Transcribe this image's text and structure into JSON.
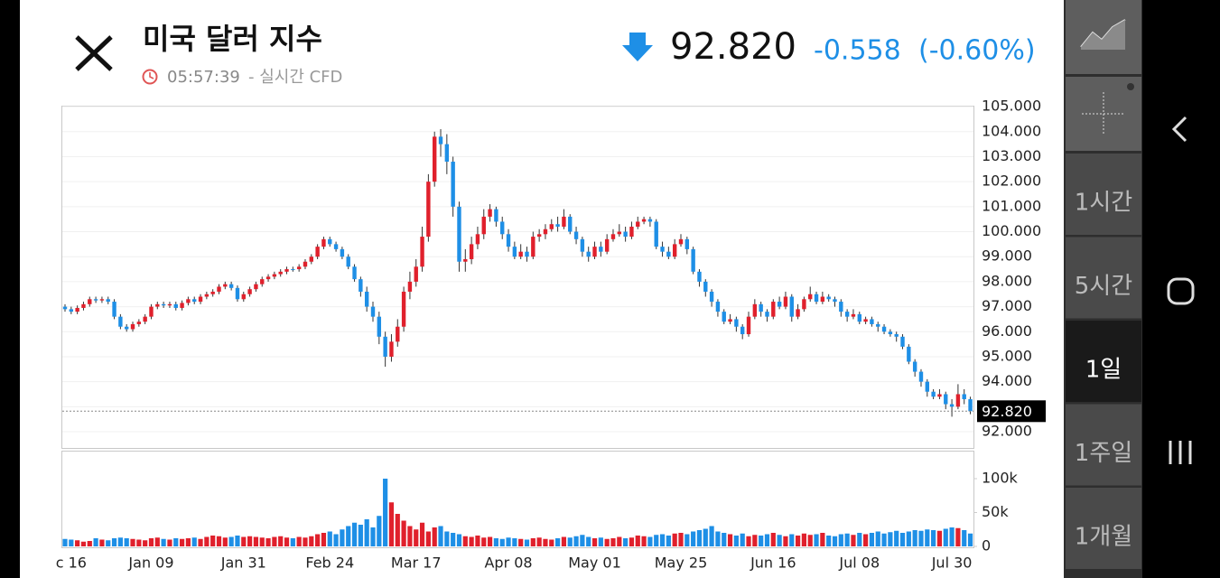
{
  "header": {
    "title": "미국 달러 지수",
    "time": "05:57:39",
    "source": "- 실시간 CFD",
    "price": "92.820",
    "change": "-0.558",
    "change_pct": "(-0.60%)"
  },
  "sidebar": {
    "timeframes": [
      "1시간",
      "5시간",
      "1일",
      "1주일",
      "1개월"
    ],
    "selected": 2
  },
  "chart_data": {
    "type": "candlestick",
    "up_color": "#e0202c",
    "down_color": "#1e8fe6",
    "categories": [
      null,
      "c 16",
      null,
      null,
      null,
      null,
      null,
      null,
      null,
      null,
      null,
      null,
      null,
      null,
      "Jan 09",
      null,
      null,
      null,
      null,
      null,
      null,
      null,
      null,
      null,
      null,
      null,
      null,
      null,
      null,
      "Jan 31",
      null,
      null,
      null,
      null,
      null,
      null,
      null,
      null,
      null,
      null,
      null,
      null,
      null,
      "Feb 24",
      null,
      null,
      null,
      null,
      null,
      null,
      null,
      null,
      null,
      null,
      null,
      null,
      null,
      "Mar 17",
      null,
      null,
      null,
      null,
      null,
      null,
      null,
      null,
      null,
      null,
      null,
      null,
      null,
      null,
      "Apr 08",
      null,
      null,
      null,
      null,
      null,
      null,
      null,
      null,
      null,
      null,
      null,
      null,
      null,
      "May 01",
      null,
      null,
      null,
      null,
      null,
      null,
      null,
      null,
      null,
      null,
      null,
      null,
      null,
      "May 25",
      null,
      null,
      null,
      null,
      null,
      null,
      null,
      null,
      null,
      null,
      null,
      null,
      null,
      null,
      "Jun 16",
      null,
      null,
      null,
      null,
      null,
      null,
      null,
      null,
      null,
      null,
      null,
      null,
      null,
      "Jul 08",
      null,
      null,
      null,
      null,
      null,
      null,
      null,
      null,
      null,
      null,
      null,
      null,
      null,
      null,
      "Jul 30",
      null,
      null,
      null
    ],
    "open": [
      97.0,
      96.9,
      96.8,
      96.95,
      97.1,
      97.3,
      97.25,
      97.3,
      97.2,
      96.6,
      96.2,
      96.1,
      96.3,
      96.4,
      96.6,
      97.0,
      97.1,
      97.05,
      97.1,
      96.95,
      97.15,
      97.3,
      97.2,
      97.4,
      97.5,
      97.6,
      97.8,
      97.9,
      97.75,
      97.3,
      97.5,
      97.7,
      97.9,
      98.1,
      98.2,
      98.3,
      98.4,
      98.5,
      98.5,
      98.6,
      98.8,
      99.0,
      99.4,
      99.7,
      99.5,
      99.3,
      99.0,
      98.6,
      98.1,
      97.6,
      97.0,
      96.6,
      95.8,
      95.0,
      95.6,
      96.2,
      97.6,
      98.0,
      98.6,
      99.8,
      102.0,
      103.8,
      103.5,
      102.8,
      101.0,
      98.8,
      98.9,
      99.5,
      99.9,
      100.6,
      100.9,
      100.4,
      99.9,
      99.4,
      99.0,
      99.2,
      99.0,
      99.8,
      99.9,
      100.1,
      100.3,
      100.2,
      100.6,
      100.0,
      99.7,
      99.2,
      99.0,
      99.4,
      99.2,
      99.7,
      99.9,
      100.0,
      99.8,
      100.2,
      100.4,
      100.5,
      100.4,
      99.4,
      99.2,
      99.0,
      99.5,
      99.7,
      99.3,
      98.4,
      98.0,
      97.6,
      97.2,
      96.8,
      96.4,
      96.5,
      96.2,
      95.9,
      96.6,
      97.1,
      96.8,
      96.6,
      97.2,
      97.0,
      97.4,
      96.6,
      96.9,
      97.3,
      97.5,
      97.2,
      97.4,
      97.3,
      97.2,
      96.8,
      96.6,
      96.7,
      96.4,
      96.5,
      96.3,
      96.2,
      96.0,
      95.9,
      95.8,
      95.4,
      94.8,
      94.4,
      94.0,
      93.6,
      93.4,
      93.5,
      93.1,
      93.0,
      93.5,
      93.3
    ],
    "high": [
      97.1,
      97.0,
      97.05,
      97.2,
      97.4,
      97.4,
      97.4,
      97.4,
      97.3,
      96.7,
      96.3,
      96.4,
      96.5,
      96.7,
      97.1,
      97.2,
      97.2,
      97.2,
      97.2,
      97.25,
      97.4,
      97.4,
      97.5,
      97.6,
      97.7,
      97.9,
      98.0,
      98.0,
      97.85,
      97.6,
      97.8,
      98.0,
      98.2,
      98.3,
      98.4,
      98.5,
      98.6,
      98.6,
      98.7,
      98.9,
      99.1,
      99.5,
      99.8,
      99.8,
      99.6,
      99.4,
      99.1,
      98.7,
      98.2,
      97.8,
      97.2,
      96.8,
      96.0,
      95.9,
      96.5,
      97.8,
      98.4,
      98.9,
      100.2,
      102.3,
      104.0,
      104.1,
      103.9,
      103.0,
      101.2,
      99.3,
      99.8,
      100.2,
      100.9,
      101.1,
      101.0,
      100.6,
      100.1,
      99.6,
      99.5,
      99.4,
      100.0,
      100.1,
      100.3,
      100.5,
      100.6,
      100.9,
      100.7,
      100.2,
      99.8,
      99.4,
      99.6,
      99.6,
      99.9,
      100.1,
      100.3,
      100.2,
      100.4,
      100.6,
      100.6,
      100.6,
      100.5,
      99.6,
      99.4,
      99.7,
      99.9,
      99.8,
      99.4,
      98.5,
      98.1,
      97.7,
      97.3,
      96.9,
      96.7,
      96.6,
      96.3,
      96.8,
      97.3,
      97.2,
      96.9,
      97.3,
      97.4,
      97.6,
      97.5,
      97.1,
      97.4,
      97.8,
      97.6,
      97.6,
      97.5,
      97.4,
      97.3,
      96.9,
      96.9,
      96.8,
      96.6,
      96.6,
      96.4,
      96.3,
      96.1,
      96.0,
      95.9,
      95.5,
      94.9,
      94.5,
      94.1,
      93.7,
      93.7,
      93.6,
      93.3,
      93.9,
      93.7,
      93.4
    ],
    "low": [
      96.8,
      96.7,
      96.7,
      96.85,
      97.0,
      97.15,
      97.15,
      97.1,
      96.5,
      96.1,
      96.0,
      96.0,
      96.2,
      96.3,
      96.5,
      96.9,
      96.95,
      96.95,
      96.85,
      96.85,
      97.05,
      97.1,
      97.1,
      97.3,
      97.4,
      97.5,
      97.7,
      97.65,
      97.2,
      97.2,
      97.4,
      97.6,
      97.8,
      98.0,
      98.1,
      98.2,
      98.3,
      98.4,
      98.4,
      98.5,
      98.7,
      98.9,
      99.3,
      99.4,
      99.2,
      98.9,
      98.5,
      98.0,
      97.4,
      96.8,
      96.4,
      95.5,
      94.6,
      94.8,
      95.4,
      96.0,
      97.3,
      97.8,
      98.4,
      99.6,
      101.8,
      103.0,
      102.3,
      100.6,
      98.4,
      98.4,
      98.7,
      99.3,
      99.7,
      100.4,
      100.2,
      99.7,
      99.2,
      98.9,
      98.9,
      98.8,
      98.9,
      99.6,
      99.7,
      100.0,
      100.0,
      100.1,
      99.9,
      99.5,
      99.0,
      98.8,
      98.9,
      99.0,
      99.1,
      99.6,
      99.8,
      99.6,
      99.7,
      100.1,
      100.3,
      100.2,
      99.3,
      99.0,
      98.9,
      98.9,
      99.4,
      99.1,
      98.3,
      97.8,
      97.4,
      97.0,
      96.6,
      96.3,
      96.3,
      96.0,
      95.7,
      95.8,
      96.5,
      96.6,
      96.4,
      96.5,
      96.9,
      96.9,
      96.4,
      96.5,
      96.8,
      97.2,
      97.1,
      97.1,
      97.2,
      97.0,
      96.6,
      96.4,
      96.5,
      96.3,
      96.3,
      96.2,
      96.0,
      95.9,
      95.8,
      95.6,
      95.3,
      94.7,
      94.2,
      93.8,
      93.4,
      93.3,
      93.3,
      92.9,
      92.6,
      92.9,
      93.1,
      92.7
    ],
    "close": [
      96.9,
      96.8,
      96.95,
      97.1,
      97.3,
      97.25,
      97.3,
      97.2,
      96.6,
      96.2,
      96.1,
      96.3,
      96.4,
      96.6,
      97.0,
      97.1,
      97.05,
      97.1,
      96.95,
      97.15,
      97.3,
      97.2,
      97.4,
      97.5,
      97.6,
      97.8,
      97.9,
      97.75,
      97.3,
      97.5,
      97.7,
      97.9,
      98.1,
      98.2,
      98.3,
      98.4,
      98.5,
      98.5,
      98.6,
      98.8,
      99.0,
      99.4,
      99.7,
      99.5,
      99.3,
      99.0,
      98.6,
      98.1,
      97.6,
      97.0,
      96.6,
      95.8,
      95.0,
      95.6,
      96.2,
      97.6,
      98.0,
      98.6,
      99.8,
      102.0,
      103.8,
      103.5,
      102.8,
      101.0,
      98.8,
      98.9,
      99.5,
      99.9,
      100.6,
      100.9,
      100.4,
      99.9,
      99.4,
      99.0,
      99.2,
      99.0,
      99.8,
      99.9,
      100.1,
      100.3,
      100.2,
      100.6,
      100.0,
      99.7,
      99.2,
      99.0,
      99.4,
      99.2,
      99.7,
      99.9,
      100.0,
      99.8,
      100.2,
      100.4,
      100.5,
      100.4,
      99.4,
      99.2,
      99.0,
      99.5,
      99.7,
      99.3,
      98.4,
      98.0,
      97.6,
      97.2,
      96.8,
      96.4,
      96.5,
      96.2,
      95.9,
      96.6,
      97.1,
      96.8,
      96.6,
      97.2,
      97.0,
      97.4,
      96.6,
      96.9,
      97.3,
      97.5,
      97.2,
      97.4,
      97.3,
      97.2,
      96.8,
      96.6,
      96.7,
      96.4,
      96.5,
      96.3,
      96.2,
      96.0,
      95.9,
      95.8,
      95.4,
      94.8,
      94.4,
      94.0,
      93.6,
      93.4,
      93.5,
      93.1,
      93.0,
      93.5,
      93.3,
      92.82
    ],
    "ylim": [
      91.35,
      105.04
    ],
    "yticks": [
      {
        "value": 92,
        "label": "92.000"
      },
      {
        "value": 93,
        "label": "93.000"
      },
      {
        "value": 94,
        "label": "94.000"
      },
      {
        "value": 95,
        "label": "95.000"
      },
      {
        "value": 96,
        "label": "96.000"
      },
      {
        "value": 97,
        "label": "97.000"
      },
      {
        "value": 98,
        "label": "98.000"
      },
      {
        "value": 99,
        "label": "99.000"
      },
      {
        "value": 100,
        "label": "100.000"
      },
      {
        "value": 101,
        "label": "101.000"
      },
      {
        "value": 102,
        "label": "102.000"
      },
      {
        "value": 103,
        "label": "103.000"
      },
      {
        "value": 104,
        "label": "104.000"
      },
      {
        "value": 105,
        "label": "105.000"
      }
    ],
    "volume": {
      "values": [
        11000,
        10000,
        9000,
        7000,
        8000,
        12000,
        10000,
        9000,
        12000,
        13000,
        12000,
        11000,
        10000,
        9000,
        12000,
        13000,
        11000,
        10000,
        12000,
        11000,
        12000,
        13000,
        11000,
        14000,
        16000,
        15000,
        13000,
        14000,
        16000,
        14000,
        15000,
        14000,
        13000,
        12000,
        14000,
        15000,
        13000,
        12000,
        14000,
        13000,
        15000,
        18000,
        20000,
        22000,
        18000,
        25000,
        30000,
        35000,
        32000,
        40000,
        28000,
        45000,
        100000,
        65000,
        48000,
        38000,
        30000,
        25000,
        35000,
        22000,
        28000,
        30000,
        22000,
        20000,
        18000,
        15000,
        14000,
        16000,
        13000,
        14000,
        12000,
        11000,
        13000,
        12000,
        11000,
        10000,
        12000,
        13000,
        11000,
        10000,
        12000,
        14000,
        13000,
        15000,
        17000,
        14000,
        12000,
        13000,
        11000,
        12000,
        14000,
        12000,
        13000,
        16000,
        15000,
        14000,
        17000,
        18000,
        16000,
        19000,
        20000,
        18000,
        22000,
        24000,
        26000,
        30000,
        22000,
        20000,
        18000,
        16000,
        19000,
        15000,
        17000,
        16000,
        18000,
        20000,
        17000,
        15000,
        18000,
        16000,
        19000,
        17000,
        18000,
        20000,
        16000,
        15000,
        18000,
        19000,
        17000,
        20000,
        18000,
        20000,
        22000,
        19000,
        21000,
        23000,
        20000,
        22000,
        24000,
        23000,
        25000,
        24000,
        23000,
        26000,
        28000,
        27000,
        24000,
        19000
      ],
      "ylim": [
        0,
        140000
      ],
      "yticks": [
        0,
        {
          "value": 50000,
          "label": "50k"
        },
        {
          "value": 100000,
          "label": "100k"
        }
      ]
    }
  }
}
